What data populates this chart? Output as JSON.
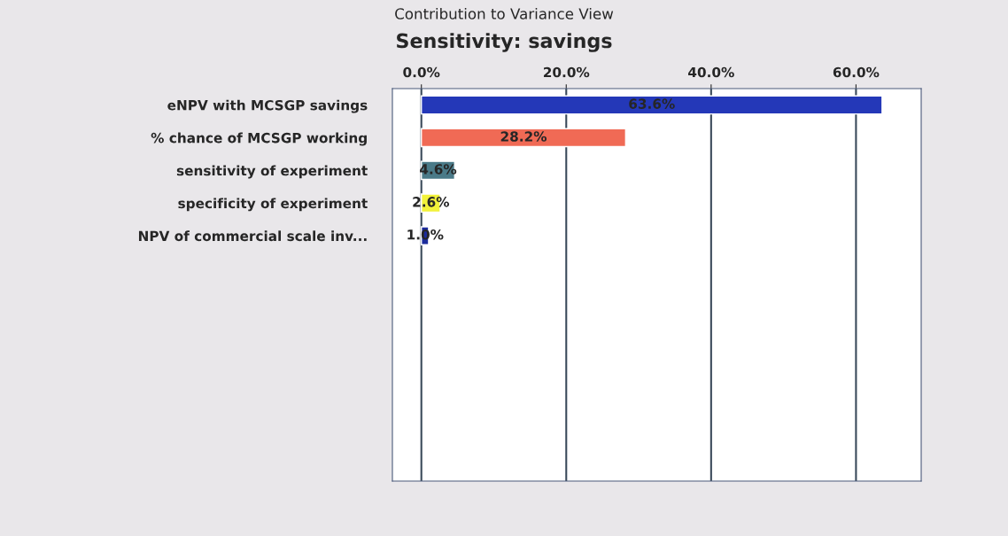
{
  "chart_data": {
    "type": "bar",
    "orientation": "horizontal",
    "title": "Contribution to Variance View",
    "subtitle": "Sensitivity: savings",
    "categories": [
      "eNPV with MCSGP savings",
      "% chance of MCSGP working",
      "sensitivity of experiment",
      "specificity of experiment",
      "NPV of commercial scale inv..."
    ],
    "values": [
      63.6,
      28.2,
      4.6,
      2.6,
      1.0
    ],
    "colors": [
      "#2438b8",
      "#f06a55",
      "#4a7a88",
      "#f2f23a",
      "#1c2c9c"
    ],
    "value_labels": [
      "63.6%",
      "28.2%",
      "4.6%",
      "2.6%",
      "1.0%"
    ],
    "xlim": [
      -4,
      69
    ],
    "xticks": [
      {
        "value": 0,
        "label": "0.0%"
      },
      {
        "value": 20,
        "label": "20.0%"
      },
      {
        "value": 40,
        "label": "40.0%"
      },
      {
        "value": 60,
        "label": "60.0%"
      }
    ],
    "grid": "x"
  }
}
